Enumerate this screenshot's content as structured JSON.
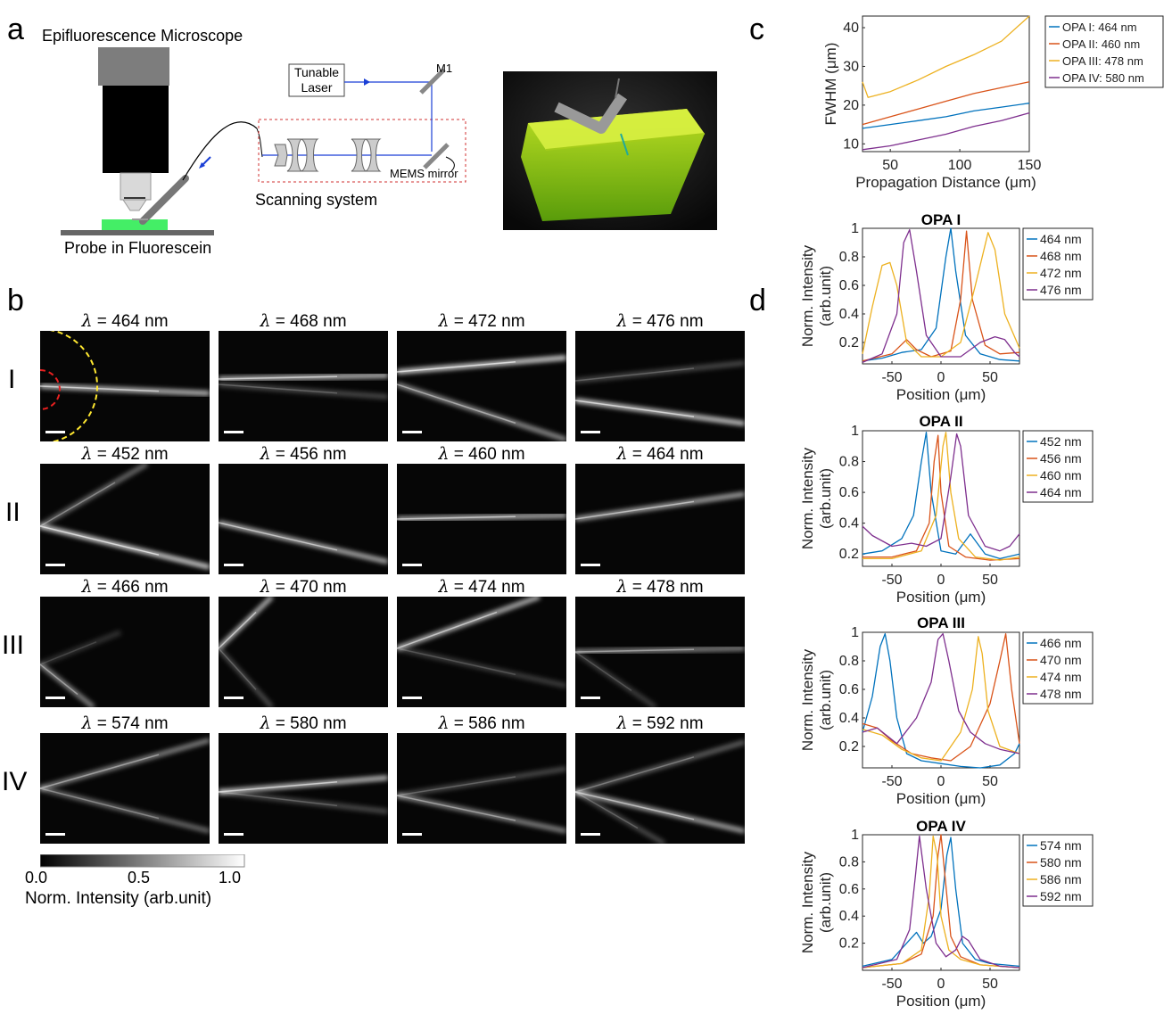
{
  "panel_a": {
    "letter": "a",
    "microscope_title": "Epifluorescence Microscope",
    "probe_label": "Probe in Fluorescein",
    "laser_label": "Tunable\nLaser",
    "mirror_m1": "M1",
    "mems_label": "MEMS mirror",
    "scanning_label": "Scanning system"
  },
  "panel_b": {
    "letter": "b",
    "rows": [
      {
        "label": "I",
        "titles": [
          "= 464 nm",
          "= 468 nm",
          "= 472 nm",
          "= 476 nm"
        ]
      },
      {
        "label": "II",
        "titles": [
          "= 452 nm",
          "= 456 nm",
          "= 460 nm",
          "= 464 nm"
        ]
      },
      {
        "label": "III",
        "titles": [
          "= 466 nm",
          "= 470 nm",
          "= 474 nm",
          "= 478 nm"
        ]
      },
      {
        "label": "IV",
        "titles": [
          "= 574 nm",
          "= 580 nm",
          "= 586 nm",
          "= 592 nm"
        ]
      }
    ],
    "lambda_symbol": "λ",
    "colorbar": {
      "ticks": [
        "0.0",
        "0.5",
        "1.0"
      ],
      "label": "Norm. Intensity (arb.unit)"
    }
  },
  "panel_c": {
    "letter": "c"
  },
  "panel_d": {
    "letter": "d"
  },
  "chart_data": [
    {
      "type": "line",
      "panel": "c",
      "xlabel": "Propagation Distance (μm)",
      "ylabel": "FWHM (μm)",
      "xlim": [
        30,
        150
      ],
      "ylim": [
        8,
        43
      ],
      "xticks": [
        50,
        100,
        150
      ],
      "yticks": [
        10,
        20,
        30,
        40
      ],
      "legend": "outside-right",
      "series": [
        {
          "name": "OPA I: 464 nm",
          "color": "#0072BD",
          "x": [
            30,
            50,
            70,
            90,
            110,
            130,
            150
          ],
          "y": [
            14,
            15,
            16,
            17,
            18.5,
            19.5,
            20.5
          ]
        },
        {
          "name": "OPA II: 460 nm",
          "color": "#D95319",
          "x": [
            30,
            50,
            70,
            90,
            110,
            130,
            150
          ],
          "y": [
            15,
            17,
            19,
            21,
            23,
            24.5,
            26
          ]
        },
        {
          "name": "OPA III: 478 nm",
          "color": "#EDB120",
          "x": [
            30,
            34,
            50,
            70,
            90,
            110,
            130,
            150
          ],
          "y": [
            26,
            22,
            23.5,
            26.5,
            30,
            33,
            36.5,
            43
          ]
        },
        {
          "name": "OPA IV: 580 nm",
          "color": "#7E2F8E",
          "x": [
            30,
            50,
            70,
            90,
            110,
            130,
            150
          ],
          "y": [
            8.5,
            9.5,
            11,
            12.5,
            14.5,
            16,
            18
          ]
        }
      ]
    },
    {
      "type": "line",
      "panel": "d",
      "title": "OPA I",
      "xlabel": "Position (μm)",
      "ylabel": "Norm. Intensity\n(arb.unit)",
      "xlim": [
        -80,
        80
      ],
      "ylim": [
        0.05,
        1.0
      ],
      "xticks": [
        -50,
        0,
        50
      ],
      "yticks": [
        0.2,
        0.4,
        0.6,
        0.8,
        1
      ],
      "series": [
        {
          "name": "464 nm",
          "color": "#0072BD",
          "x": [
            -80,
            -60,
            -40,
            -20,
            -5,
            5,
            10,
            15,
            25,
            40,
            60,
            80
          ],
          "y": [
            0.07,
            0.09,
            0.13,
            0.15,
            0.3,
            0.8,
            1.0,
            0.7,
            0.25,
            0.12,
            0.08,
            0.07
          ]
        },
        {
          "name": "468 nm",
          "color": "#D95319",
          "x": [
            -80,
            -50,
            -35,
            -25,
            -10,
            10,
            20,
            26,
            32,
            45,
            60,
            80
          ],
          "y": [
            0.07,
            0.12,
            0.22,
            0.15,
            0.1,
            0.14,
            0.5,
            0.98,
            0.5,
            0.18,
            0.12,
            0.13
          ]
        },
        {
          "name": "472 nm",
          "color": "#EDB120",
          "x": [
            -80,
            -70,
            -60,
            -52,
            -45,
            -35,
            -20,
            0,
            20,
            35,
            48,
            55,
            65,
            80
          ],
          "y": [
            0.12,
            0.45,
            0.74,
            0.76,
            0.6,
            0.2,
            0.1,
            0.1,
            0.2,
            0.6,
            0.97,
            0.85,
            0.4,
            0.16
          ]
        },
        {
          "name": "476 nm",
          "color": "#7E2F8E",
          "x": [
            -80,
            -60,
            -45,
            -38,
            -32,
            -25,
            -15,
            0,
            20,
            40,
            55,
            65,
            75,
            80
          ],
          "y": [
            0.06,
            0.12,
            0.4,
            0.9,
            0.99,
            0.7,
            0.25,
            0.1,
            0.1,
            0.2,
            0.24,
            0.22,
            0.13,
            0.1
          ]
        }
      ]
    },
    {
      "type": "line",
      "panel": "d",
      "title": "OPA II",
      "xlabel": "Position (μm)",
      "ylabel": "Norm. Intensity\n(arb.unit)",
      "xlim": [
        -80,
        80
      ],
      "ylim": [
        0.12,
        1.0
      ],
      "xticks": [
        -50,
        0,
        50
      ],
      "yticks": [
        0.2,
        0.4,
        0.6,
        0.8,
        1
      ],
      "series": [
        {
          "name": "452 nm",
          "color": "#0072BD",
          "x": [
            -80,
            -60,
            -40,
            -28,
            -20,
            -15,
            -10,
            0,
            15,
            30,
            45,
            60,
            80
          ],
          "y": [
            0.2,
            0.22,
            0.3,
            0.45,
            0.8,
            0.99,
            0.6,
            0.22,
            0.2,
            0.33,
            0.2,
            0.17,
            0.2
          ]
        },
        {
          "name": "456 nm",
          "color": "#D95319",
          "x": [
            -80,
            -50,
            -25,
            -12,
            -7,
            -3,
            0,
            8,
            25,
            50,
            80
          ],
          "y": [
            0.18,
            0.18,
            0.22,
            0.4,
            0.8,
            0.97,
            0.6,
            0.25,
            0.18,
            0.16,
            0.17
          ]
        },
        {
          "name": "460 nm",
          "color": "#EDB120",
          "x": [
            -80,
            -50,
            -20,
            -5,
            2,
            5,
            10,
            18,
            35,
            60,
            80
          ],
          "y": [
            0.17,
            0.17,
            0.22,
            0.45,
            0.9,
            0.99,
            0.6,
            0.3,
            0.18,
            0.16,
            0.18
          ]
        },
        {
          "name": "464 nm",
          "color": "#7E2F8E",
          "x": [
            -80,
            -70,
            -50,
            -30,
            -15,
            0,
            10,
            16,
            20,
            28,
            45,
            60,
            70,
            80
          ],
          "y": [
            0.38,
            0.32,
            0.25,
            0.27,
            0.25,
            0.3,
            0.7,
            0.98,
            0.9,
            0.45,
            0.25,
            0.22,
            0.25,
            0.33
          ]
        }
      ]
    },
    {
      "type": "line",
      "panel": "d",
      "title": "OPA III",
      "xlabel": "Position (μm)",
      "ylabel": "Norm. Intensity\n(arb.unit)",
      "xlim": [
        -80,
        80
      ],
      "ylim": [
        0.05,
        1.0
      ],
      "xticks": [
        -50,
        0,
        50
      ],
      "yticks": [
        0.2,
        0.4,
        0.6,
        0.8,
        1
      ],
      "series": [
        {
          "name": "466 nm",
          "color": "#0072BD",
          "x": [
            -80,
            -70,
            -62,
            -57,
            -52,
            -45,
            -35,
            -20,
            0,
            20,
            40,
            60,
            75,
            80
          ],
          "y": [
            0.3,
            0.55,
            0.9,
            0.99,
            0.8,
            0.4,
            0.15,
            0.1,
            0.08,
            0.06,
            0.05,
            0.07,
            0.15,
            0.22
          ]
        },
        {
          "name": "470 nm",
          "color": "#D95319",
          "x": [
            -80,
            -65,
            -50,
            -30,
            -10,
            10,
            30,
            50,
            60,
            66,
            72,
            80
          ],
          "y": [
            0.36,
            0.33,
            0.24,
            0.15,
            0.12,
            0.1,
            0.2,
            0.5,
            0.8,
            0.99,
            0.6,
            0.22
          ]
        },
        {
          "name": "474 nm",
          "color": "#EDB120",
          "x": [
            -80,
            -60,
            -40,
            -20,
            0,
            20,
            32,
            38,
            42,
            48,
            60,
            80
          ],
          "y": [
            0.32,
            0.28,
            0.18,
            0.12,
            0.1,
            0.3,
            0.6,
            0.97,
            0.85,
            0.45,
            0.2,
            0.15
          ]
        },
        {
          "name": "478 nm",
          "color": "#7E2F8E",
          "x": [
            -80,
            -65,
            -45,
            -25,
            -10,
            -3,
            2,
            8,
            18,
            30,
            45,
            60,
            80
          ],
          "y": [
            0.3,
            0.33,
            0.22,
            0.4,
            0.65,
            0.95,
            0.99,
            0.8,
            0.45,
            0.3,
            0.22,
            0.18,
            0.15
          ]
        }
      ]
    },
    {
      "type": "line",
      "panel": "d",
      "title": "OPA IV",
      "xlabel": "Position (μm)",
      "ylabel": "Norm. Intensity\n(arb.unit)",
      "xlim": [
        -80,
        80
      ],
      "ylim": [
        0.0,
        1.0
      ],
      "xticks": [
        -50,
        0,
        50
      ],
      "yticks": [
        0.2,
        0.4,
        0.6,
        0.8,
        1
      ],
      "series": [
        {
          "name": "574 nm",
          "color": "#0072BD",
          "x": [
            -80,
            -50,
            -35,
            -25,
            -18,
            -10,
            0,
            6,
            10,
            15,
            22,
            35,
            50,
            80
          ],
          "y": [
            0.03,
            0.08,
            0.2,
            0.28,
            0.2,
            0.25,
            0.45,
            0.85,
            0.98,
            0.6,
            0.2,
            0.08,
            0.05,
            0.03
          ]
        },
        {
          "name": "580 nm",
          "color": "#D95319",
          "x": [
            -80,
            -40,
            -20,
            -8,
            -3,
            0,
            4,
            10,
            20,
            40,
            80
          ],
          "y": [
            0.02,
            0.05,
            0.12,
            0.4,
            0.85,
            1.0,
            0.7,
            0.25,
            0.1,
            0.04,
            0.02
          ]
        },
        {
          "name": "586 nm",
          "color": "#EDB120",
          "x": [
            -80,
            -40,
            -20,
            -12,
            -8,
            -4,
            0,
            8,
            20,
            40,
            80
          ],
          "y": [
            0.02,
            0.05,
            0.15,
            0.55,
            0.99,
            0.85,
            0.4,
            0.15,
            0.08,
            0.04,
            0.02
          ]
        },
        {
          "name": "592 nm",
          "color": "#7E2F8E",
          "x": [
            -80,
            -45,
            -32,
            -26,
            -22,
            -15,
            -5,
            5,
            15,
            22,
            28,
            40,
            60,
            80
          ],
          "y": [
            0.02,
            0.08,
            0.3,
            0.7,
            0.99,
            0.6,
            0.2,
            0.1,
            0.15,
            0.25,
            0.22,
            0.08,
            0.03,
            0.02
          ]
        }
      ]
    }
  ]
}
